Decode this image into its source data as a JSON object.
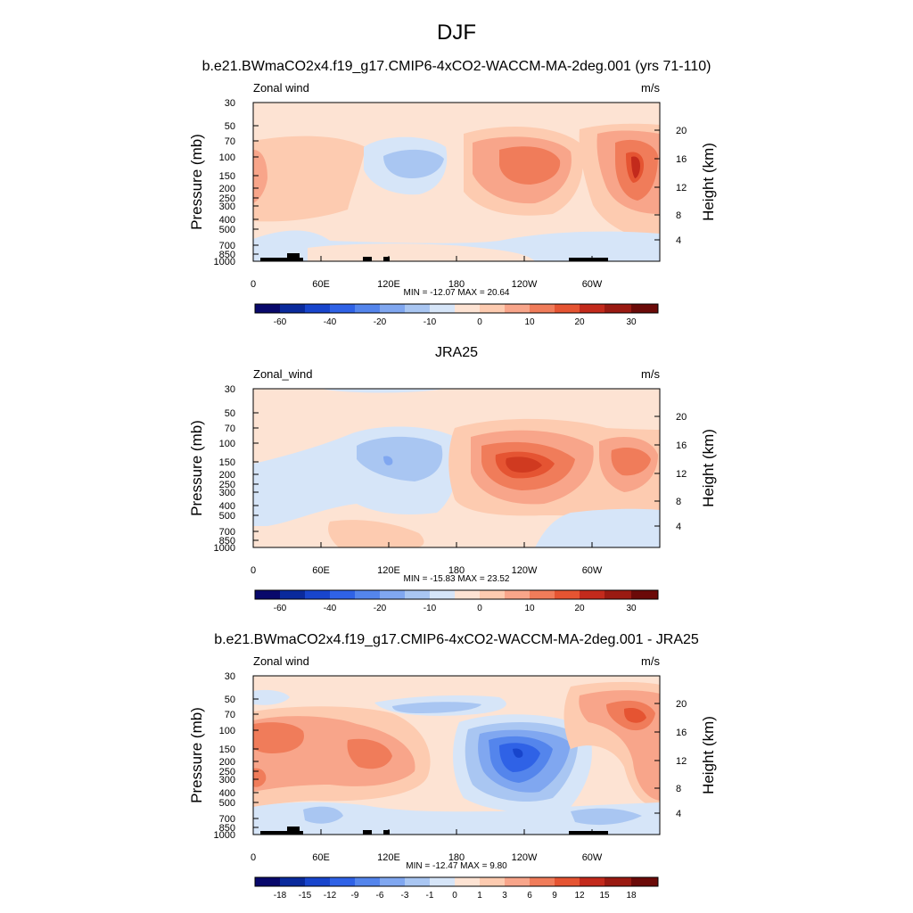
{
  "page": {
    "title": "DJF"
  },
  "chart_data": [
    {
      "type": "contour",
      "title": "b.e21.BWmaCO2x4.f19_g17.CMIP6-4xCO2-WACCM-MA-2deg.001 (yrs 71-110)",
      "left_label": "Zonal wind",
      "right_label": "m/s",
      "ylabel": "Pressure (mb)",
      "ylabel_right": "Height (km)",
      "x_ticks": [
        "0",
        "60E",
        "120E",
        "180",
        "120W",
        "60W"
      ],
      "y_ticks": [
        "30",
        "50",
        "70",
        "100",
        "150",
        "200",
        "250",
        "300",
        "400",
        "500",
        "700",
        "850",
        "1000"
      ],
      "height_ticks": [
        "20",
        "16",
        "12",
        "8",
        "4"
      ],
      "stats": "MIN = -12.07  MAX =  20.64",
      "min": -12.07,
      "max": 20.64,
      "colorbar_ticks": [
        "-60",
        "-40",
        "-20",
        "-10",
        "0",
        "10",
        "20",
        "30"
      ],
      "features": [
        {
          "lon": 0,
          "p": 120,
          "value": 8
        },
        {
          "lon": 60,
          "p": 90,
          "value": 3
        },
        {
          "lon": 130,
          "p": 110,
          "value": -8
        },
        {
          "lon": 175,
          "p": 115,
          "value": 7
        },
        {
          "lon": 235,
          "p": 130,
          "value": 15
        },
        {
          "lon": 315,
          "p": 125,
          "value": 18
        },
        {
          "lon": 335,
          "p": 100,
          "value": 20.64
        },
        {
          "lon": 60,
          "p": 600,
          "value": -4
        },
        {
          "lon": 230,
          "p": 700,
          "value": -3
        },
        {
          "lon": 20,
          "p": 950,
          "value": -5
        }
      ]
    },
    {
      "type": "contour",
      "title": "JRA25",
      "left_label": "Zonal_wind",
      "right_label": "m/s",
      "ylabel": "Pressure (mb)",
      "ylabel_right": "Height (km)",
      "x_ticks": [
        "0",
        "60E",
        "120E",
        "180",
        "120W",
        "60W"
      ],
      "y_ticks": [
        "30",
        "50",
        "70",
        "100",
        "150",
        "200",
        "250",
        "300",
        "400",
        "500",
        "700",
        "850",
        "1000"
      ],
      "height_ticks": [
        "20",
        "16",
        "12",
        "8",
        "4"
      ],
      "stats": "MIN = -15.83  MAX =  23.52",
      "min": -15.83,
      "max": 23.52,
      "colorbar_ticks": [
        "-60",
        "-40",
        "-20",
        "-10",
        "0",
        "10",
        "20",
        "30"
      ],
      "features": [
        {
          "lon": 130,
          "p": 140,
          "value": -15.83
        },
        {
          "lon": 80,
          "p": 300,
          "value": -4
        },
        {
          "lon": 240,
          "p": 150,
          "value": 23.52
        },
        {
          "lon": 330,
          "p": 150,
          "value": 15
        },
        {
          "lon": 20,
          "p": 110,
          "value": 3
        },
        {
          "lon": 120,
          "p": 35,
          "value": -2
        },
        {
          "lon": 230,
          "p": 800,
          "value": 3
        },
        {
          "lon": 330,
          "p": 800,
          "value": -3
        }
      ]
    },
    {
      "type": "contour",
      "title": "b.e21.BWmaCO2x4.f19_g17.CMIP6-4xCO2-WACCM-MA-2deg.001 - JRA25",
      "left_label": "Zonal wind",
      "right_label": "m/s",
      "ylabel": "Pressure (mb)",
      "ylabel_right": "Height (km)",
      "x_ticks": [
        "0",
        "60E",
        "120E",
        "180",
        "120W",
        "60W"
      ],
      "y_ticks": [
        "30",
        "50",
        "70",
        "100",
        "150",
        "200",
        "250",
        "300",
        "400",
        "500",
        "700",
        "850",
        "1000"
      ],
      "height_ticks": [
        "20",
        "16",
        "12",
        "8",
        "4"
      ],
      "stats": "MIN = -12.47  MAX =   9.80",
      "min": -12.47,
      "max": 9.8,
      "colorbar_ticks": [
        "-18",
        "-15",
        "-12",
        "-9",
        "-6",
        "-3",
        "-1",
        "0",
        "1",
        "3",
        "6",
        "9",
        "12",
        "15",
        "18"
      ],
      "features": [
        {
          "lon": 240,
          "p": 170,
          "value": -12.47
        },
        {
          "lon": 230,
          "p": 200,
          "value": -9
        },
        {
          "lon": 15,
          "p": 110,
          "value": 6
        },
        {
          "lon": 105,
          "p": 170,
          "value": 7
        },
        {
          "lon": 55,
          "p": 220,
          "value": 5
        },
        {
          "lon": 335,
          "p": 75,
          "value": 9.8
        },
        {
          "lon": 345,
          "p": 300,
          "value": 6
        },
        {
          "lon": 310,
          "p": 170,
          "value": 3
        },
        {
          "lon": 130,
          "p": 65,
          "value": -3
        },
        {
          "lon": 20,
          "p": 50,
          "value": -2
        },
        {
          "lon": 120,
          "p": 900,
          "value": -2
        },
        {
          "lon": 30,
          "p": 750,
          "value": -2
        }
      ]
    }
  ]
}
